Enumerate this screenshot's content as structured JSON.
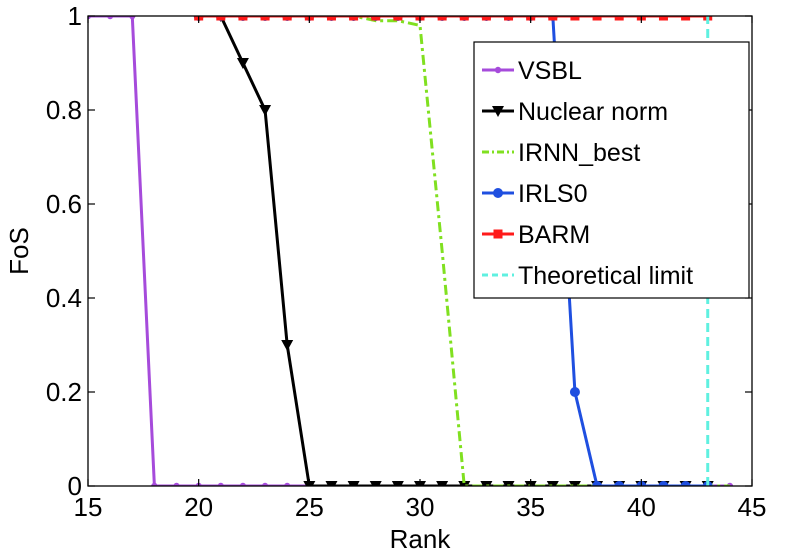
{
  "chart_data": {
    "type": "line",
    "xlabel": "Rank",
    "ylabel": "FoS",
    "xlim": [
      15,
      45
    ],
    "ylim": [
      0,
      1
    ],
    "xticks": [
      15,
      20,
      25,
      30,
      35,
      40,
      45
    ],
    "yticks": [
      0,
      0.2,
      0.4,
      0.6,
      0.8,
      1
    ],
    "ytick_labels": [
      "0",
      "0.2",
      "0.4",
      "0.6",
      "0.8",
      "1"
    ],
    "grid": false,
    "legend_position": "top-right",
    "series": [
      {
        "name": "VSBL",
        "color": "#a64bdb",
        "dash": "solid",
        "marker": "dot",
        "x": [
          15,
          16,
          17,
          18,
          19,
          20,
          21,
          22,
          23,
          24,
          25,
          26,
          27,
          28,
          29,
          30,
          31,
          32,
          33,
          34,
          35,
          36,
          37,
          38,
          39,
          40,
          41,
          42,
          43,
          44
        ],
        "y": [
          1,
          1,
          1,
          0,
          0,
          0,
          0,
          0,
          0,
          0,
          0,
          0,
          0,
          0,
          0,
          0,
          0,
          0,
          0,
          0,
          0,
          0,
          0,
          0,
          0,
          0,
          0,
          0,
          0,
          0
        ]
      },
      {
        "name": "Nuclear norm",
        "color": "#000000",
        "dash": "solid",
        "marker": "triangle-down",
        "x": [
          20,
          21,
          22,
          23,
          24,
          25,
          26,
          27,
          28,
          29,
          30,
          31,
          32,
          33,
          34,
          35,
          36,
          37,
          38,
          39,
          40,
          41,
          42,
          43
        ],
        "y": [
          1,
          1,
          0.9,
          0.8,
          0.3,
          0,
          0,
          0,
          0,
          0,
          0,
          0,
          0,
          0,
          0,
          0,
          0,
          0,
          0,
          0,
          0,
          0,
          0,
          0
        ]
      },
      {
        "name": "IRNN_best",
        "color": "#80e020",
        "dash": "dashdot",
        "marker": "none",
        "x": [
          20,
          21,
          22,
          23,
          24,
          25,
          26,
          27,
          28,
          29,
          30,
          31,
          32,
          33,
          34,
          35,
          36,
          37,
          38,
          39,
          40,
          41,
          42,
          43,
          44
        ],
        "y": [
          1,
          1,
          1,
          1,
          1,
          1,
          1,
          1,
          0.99,
          0.99,
          0.98,
          0.5,
          0,
          0,
          0,
          0,
          0,
          0,
          0,
          0,
          0,
          0,
          0,
          0,
          0
        ]
      },
      {
        "name": "IRLS0",
        "color": "#1f4fe0",
        "dash": "solid",
        "marker": "circle",
        "x": [
          20,
          21,
          22,
          23,
          24,
          25,
          26,
          27,
          28,
          29,
          30,
          31,
          32,
          33,
          34,
          35,
          36,
          37,
          38,
          39,
          40,
          41,
          42,
          43
        ],
        "y": [
          1,
          1,
          1,
          1,
          1,
          1,
          1,
          1,
          1,
          1,
          1,
          1,
          1,
          1,
          1,
          1,
          1,
          0.2,
          0,
          0,
          0,
          0,
          0,
          0
        ]
      },
      {
        "name": "BARM",
        "color": "#ff1a1a",
        "dash": "solid",
        "marker": "square",
        "x": [
          20,
          21,
          22,
          23,
          24,
          25,
          26,
          27,
          28,
          29,
          30,
          31,
          32,
          33,
          34,
          35,
          36,
          37,
          38,
          39,
          40,
          41,
          42,
          43
        ],
        "y": [
          1,
          1,
          1,
          1,
          1,
          1,
          1,
          1,
          1,
          1,
          1,
          1,
          1,
          1,
          1,
          1,
          1,
          1,
          1,
          1,
          1,
          1,
          1,
          1
        ]
      },
      {
        "name": "Theoretical limit",
        "color": "#5ff0e0",
        "dash": "dashed",
        "marker": "none",
        "x": [
          43,
          43
        ],
        "y": [
          0,
          1
        ]
      }
    ]
  }
}
